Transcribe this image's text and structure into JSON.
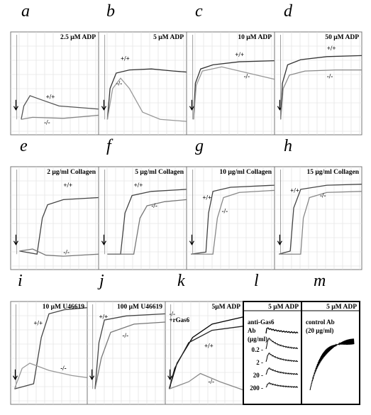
{
  "panels": [
    {
      "letter": "a",
      "label": "2.5 μM ADP",
      "traces": [
        "+/+",
        "-/-"
      ]
    },
    {
      "letter": "b",
      "label": "5 μM ADP",
      "traces": [
        "+/+",
        "-/-"
      ]
    },
    {
      "letter": "c",
      "label": "10 μM ADP",
      "traces": [
        "+/+",
        "-/-"
      ]
    },
    {
      "letter": "d",
      "label": "50 μM ADP",
      "traces": [
        "+/+",
        "-/-"
      ]
    },
    {
      "letter": "e",
      "label": "2 μg/ml Collagen",
      "traces": [
        "+/+",
        "-/-"
      ]
    },
    {
      "letter": "f",
      "label": "5 μg/ml Collagen",
      "traces": [
        "+/+",
        "-/-"
      ]
    },
    {
      "letter": "g",
      "label": "10 μg/ml Collagen",
      "traces": [
        "+/+",
        "-/-"
      ]
    },
    {
      "letter": "h",
      "label": "15 μg/ml Collagen",
      "traces": [
        "+/+",
        "-/-"
      ]
    },
    {
      "letter": "i",
      "label": "10 μM U46619",
      "traces": [
        "+/+",
        "-/-"
      ]
    },
    {
      "letter": "j",
      "label": "100 μM U46619",
      "traces": [
        "+/+",
        "-/-"
      ]
    },
    {
      "letter": "k",
      "label": "5μM ADP",
      "traces": [
        "-/-",
        "+rGas6",
        "+/+",
        "-/-"
      ]
    },
    {
      "letter": "l",
      "label": "5 μM ADP",
      "legend": [
        "anti-Gas6",
        "Ab",
        "(μg/ml)"
      ],
      "doses": [
        "0.2 -",
        "2 -",
        "20 -",
        "200 -"
      ]
    },
    {
      "letter": "m",
      "label": "5 μM ADP",
      "legend": [
        "control Ab",
        "(20 μg/ml)"
      ]
    }
  ]
}
